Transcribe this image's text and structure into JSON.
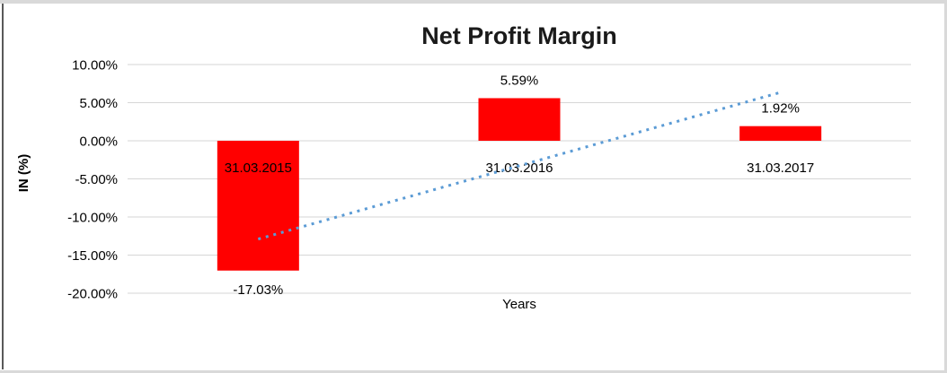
{
  "chart_data": {
    "type": "bar",
    "title": "Net Profit Margin",
    "xlabel": "Years",
    "ylabel": "IN (%)",
    "categories": [
      "31.03.2015",
      "31.03.2016",
      "31.03.2017"
    ],
    "values": [
      -17.03,
      5.59,
      1.92
    ],
    "data_labels": [
      "-17.03%",
      "5.59%",
      "1.92%"
    ],
    "y_ticks": [
      {
        "value": 10,
        "label": "10.00%"
      },
      {
        "value": 5,
        "label": "5.00%"
      },
      {
        "value": 0,
        "label": "0.00%"
      },
      {
        "value": -5,
        "label": "-5.00%"
      },
      {
        "value": -10,
        "label": "-10.00%"
      },
      {
        "value": -15,
        "label": "-15.00%"
      },
      {
        "value": -20,
        "label": "-20.00%"
      }
    ],
    "ylim": [
      -20,
      10
    ],
    "grid": true,
    "legend": "none",
    "colors": {
      "bar": "#ff0000",
      "trendline": "#5b9bd5",
      "gridline": "#d6d6d6",
      "title_text": "#1a1a1a",
      "label_text": "#000000"
    },
    "trendline": {
      "type": "linear",
      "style": "dotted",
      "start_value": -12.9,
      "end_value": 6.35
    }
  }
}
